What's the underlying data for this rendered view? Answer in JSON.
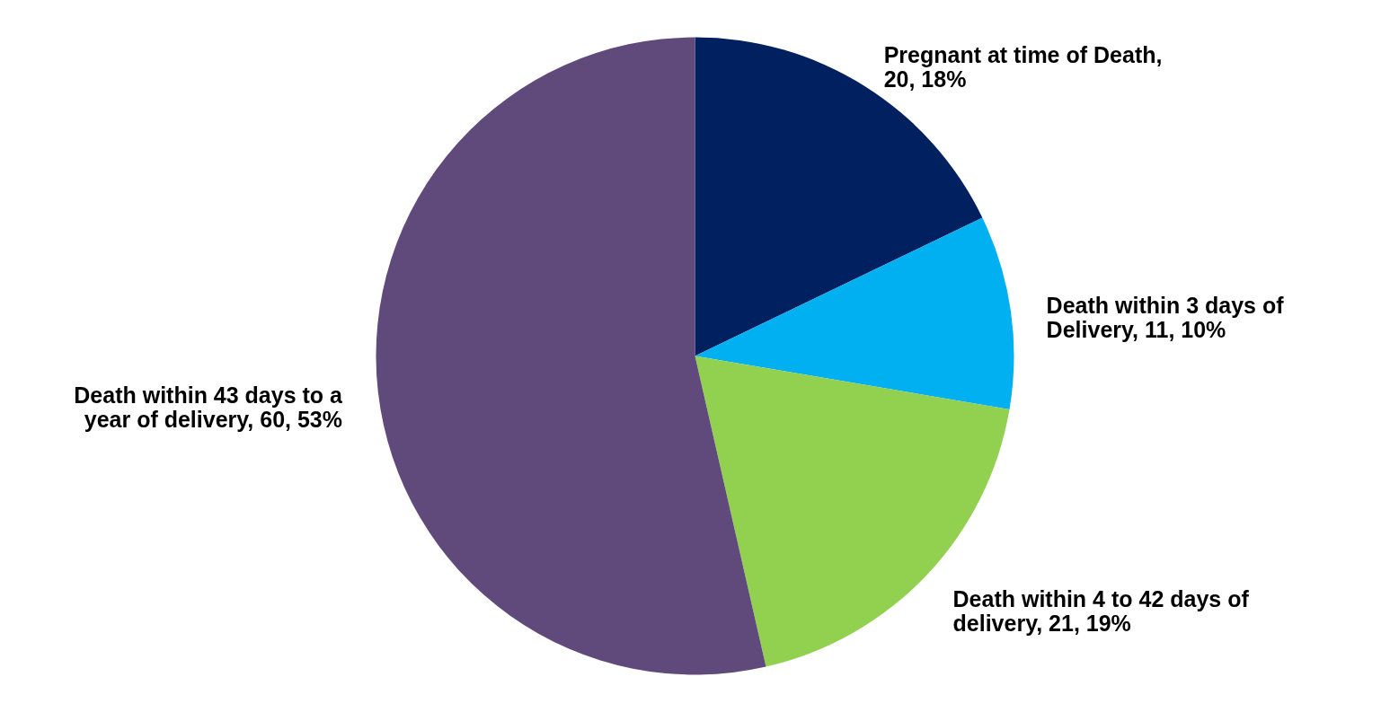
{
  "chart_data": {
    "type": "pie",
    "categories": [
      "Pregnant at time of Death, 20, 18%",
      "Death within 3 days of Delivery, 11, 10%",
      "Death within 4 to 42 days of delivery, 21, 19%",
      "Death within 43 days to a year of delivery, 60, 53%"
    ],
    "values": [
      20,
      11,
      21,
      60
    ],
    "colors": [
      "#002060",
      "#00b0f0",
      "#92d050",
      "#604a7b"
    ]
  }
}
